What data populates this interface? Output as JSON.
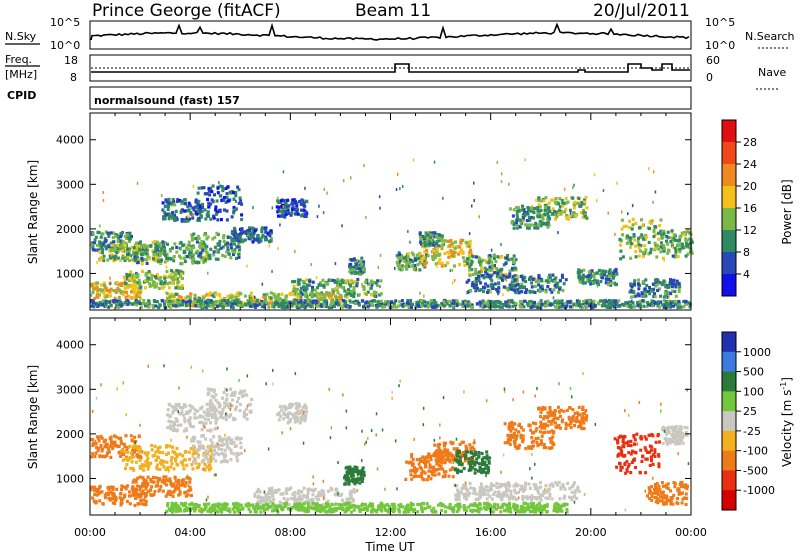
{
  "header": {
    "station": "Prince George (fitACF)",
    "beam": "Beam 11",
    "date": "20/Jul/2011"
  },
  "noise_panel": {
    "left_label": "N.Sky",
    "right_label": "N.Search",
    "left_ticks": [
      "10^5",
      "10^0"
    ],
    "right_ticks": [
      "10^5",
      "10^0"
    ]
  },
  "freq_panel": {
    "left_label_1": "Freq.",
    "left_label_2": "[MHz]",
    "cpid_label": "CPID",
    "right_label": "Nave",
    "left_ticks": [
      "18",
      "8"
    ],
    "right_ticks": [
      "60",
      "0"
    ],
    "cpid_text": "normalsound (fast) 157"
  },
  "power_colorbar": {
    "title": "Power [dB]",
    "labels": [
      "28",
      "24",
      "20",
      "16",
      "12",
      "8",
      "4"
    ],
    "colors": [
      "#e01010",
      "#f04818",
      "#f08a20",
      "#f2c21a",
      "#7ab848",
      "#2f8a62",
      "#2848b8",
      "#1010e8"
    ]
  },
  "velocity_colorbar": {
    "title": "Velocity [m s",
    "title_sup": "-1",
    "title_end": "]",
    "labels": [
      "1000",
      "500",
      "100",
      "25",
      "-25",
      "-100",
      "-500",
      "-1000"
    ],
    "colors": [
      "#2030b0",
      "#3c7ae0",
      "#2a7a3a",
      "#72c83a",
      "#c8c8c0",
      "#f2b020",
      "#f07a18",
      "#e83010",
      "#d40000"
    ]
  },
  "chart_data": [
    {
      "type": "heatmap",
      "title": "Power",
      "ylabel": "Slant Range [km]",
      "yticks": [
        "4000",
        "3000",
        "2000",
        "1000"
      ],
      "ylim": [
        180,
        4600
      ],
      "xlim": [
        0,
        24
      ],
      "xticks": [
        "00:00",
        "04:00",
        "08:00",
        "12:00",
        "16:00",
        "20:00",
        "00:00"
      ],
      "blobs": [
        {
          "t": 0.6,
          "r": 1750,
          "dt": 1.0,
          "dr": 220,
          "v": 10
        },
        {
          "t": 1.6,
          "r": 1500,
          "dt": 1.3,
          "dr": 180,
          "v": 14
        },
        {
          "t": 3.2,
          "r": 1500,
          "dt": 1.5,
          "dr": 250,
          "v": 12
        },
        {
          "t": 5.0,
          "r": 1650,
          "dt": 1.0,
          "dr": 300,
          "v": 11
        },
        {
          "t": 6.4,
          "r": 1900,
          "dt": 0.8,
          "dr": 160,
          "v": 8
        },
        {
          "t": 1.0,
          "r": 650,
          "dt": 1.0,
          "dr": 180,
          "v": 18
        },
        {
          "t": 2.5,
          "r": 900,
          "dt": 1.2,
          "dr": 200,
          "v": 14
        },
        {
          "t": 3.6,
          "r": 2450,
          "dt": 0.8,
          "dr": 250,
          "v": 8
        },
        {
          "t": 5.1,
          "r": 2600,
          "dt": 0.9,
          "dr": 400,
          "v": 7
        },
        {
          "t": 8.0,
          "r": 2500,
          "dt": 0.6,
          "dr": 200,
          "v": 6
        },
        {
          "t": 9.8,
          "r": 700,
          "dt": 1.8,
          "dr": 200,
          "v": 12
        },
        {
          "t": 10.6,
          "r": 1200,
          "dt": 0.3,
          "dr": 180,
          "v": 10
        },
        {
          "t": 12.8,
          "r": 1300,
          "dt": 0.6,
          "dr": 200,
          "v": 12
        },
        {
          "t": 14.2,
          "r": 1500,
          "dt": 1.0,
          "dr": 300,
          "v": 18
        },
        {
          "t": 13.6,
          "r": 1800,
          "dt": 0.5,
          "dr": 150,
          "v": 11
        },
        {
          "t": 16.0,
          "r": 1200,
          "dt": 1.0,
          "dr": 250,
          "v": 12
        },
        {
          "t": 17.5,
          "r": 2300,
          "dt": 0.8,
          "dr": 250,
          "v": 11
        },
        {
          "t": 18.8,
          "r": 2500,
          "dt": 1.0,
          "dr": 250,
          "v": 13
        },
        {
          "t": 17.0,
          "r": 800,
          "dt": 2.0,
          "dr": 200,
          "v": 9
        },
        {
          "t": 20.2,
          "r": 950,
          "dt": 0.8,
          "dr": 180,
          "v": 10
        },
        {
          "t": 22.0,
          "r": 1800,
          "dt": 0.9,
          "dr": 450,
          "v": 14
        },
        {
          "t": 23.4,
          "r": 1700,
          "dt": 0.6,
          "dr": 300,
          "v": 12
        },
        {
          "t": 22.5,
          "r": 700,
          "dt": 1.0,
          "dr": 200,
          "v": 9
        },
        {
          "t": 6.5,
          "r": 450,
          "dt": 3.5,
          "dr": 150,
          "v": 16
        },
        {
          "t": 12.0,
          "r": 350,
          "dt": 12.0,
          "dr": 80,
          "v": 10
        }
      ]
    },
    {
      "type": "heatmap",
      "title": "Velocity",
      "ylabel": "Slant Range [km]",
      "yticks": [
        "4000",
        "3000",
        "2000",
        "1000"
      ],
      "ylim": [
        180,
        4600
      ],
      "xlim": [
        0,
        24
      ],
      "xticks": [
        "00:00",
        "04:00",
        "08:00",
        "12:00",
        "16:00",
        "20:00",
        "00:00"
      ],
      "xlabel": "Time UT",
      "blobs": [
        {
          "t": 0.8,
          "r": 1750,
          "dt": 1.2,
          "dr": 250,
          "v": -200
        },
        {
          "t": 3.0,
          "r": 1500,
          "dt": 1.8,
          "dr": 280,
          "v": -40
        },
        {
          "t": 5.0,
          "r": 1700,
          "dt": 1.0,
          "dr": 300,
          "v": 0
        },
        {
          "t": 1.0,
          "r": 650,
          "dt": 1.2,
          "dr": 220,
          "v": -400
        },
        {
          "t": 2.8,
          "r": 850,
          "dt": 1.2,
          "dr": 220,
          "v": -200
        },
        {
          "t": 4.0,
          "r": 2400,
          "dt": 1.0,
          "dr": 300,
          "v": 0
        },
        {
          "t": 5.5,
          "r": 2700,
          "dt": 0.9,
          "dr": 350,
          "v": 10
        },
        {
          "t": 8.0,
          "r": 2500,
          "dt": 0.6,
          "dr": 220,
          "v": 5
        },
        {
          "t": 8.5,
          "r": 600,
          "dt": 2.0,
          "dr": 220,
          "v": 5
        },
        {
          "t": 10.5,
          "r": 1100,
          "dt": 0.4,
          "dr": 200,
          "v": 200
        },
        {
          "t": 13.5,
          "r": 1300,
          "dt": 1.0,
          "dr": 300,
          "v": -200
        },
        {
          "t": 14.5,
          "r": 1600,
          "dt": 0.8,
          "dr": 250,
          "v": -250
        },
        {
          "t": 15.2,
          "r": 1400,
          "dt": 0.7,
          "dr": 250,
          "v": 200
        },
        {
          "t": 17.5,
          "r": 2000,
          "dt": 1.0,
          "dr": 300,
          "v": -300
        },
        {
          "t": 18.8,
          "r": 2400,
          "dt": 1.0,
          "dr": 250,
          "v": -400
        },
        {
          "t": 17.0,
          "r": 750,
          "dt": 2.5,
          "dr": 200,
          "v": -10
        },
        {
          "t": 21.8,
          "r": 1600,
          "dt": 0.9,
          "dr": 450,
          "v": -700
        },
        {
          "t": 23.3,
          "r": 2000,
          "dt": 0.5,
          "dr": 200,
          "v": -10
        },
        {
          "t": 23.0,
          "r": 700,
          "dt": 0.8,
          "dr": 250,
          "v": -300
        },
        {
          "t": 11.0,
          "r": 380,
          "dt": 8.0,
          "dr": 100,
          "v": 50
        }
      ]
    }
  ]
}
